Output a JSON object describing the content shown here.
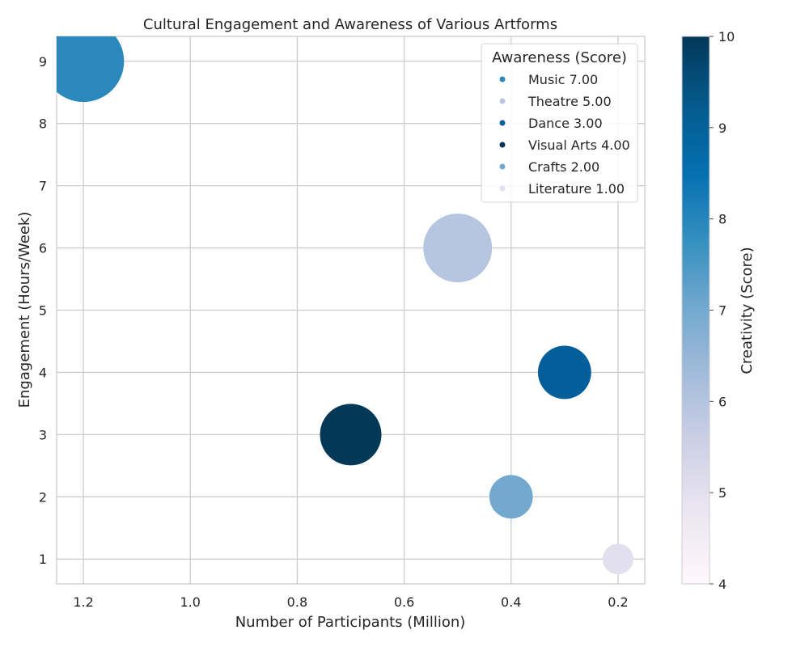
{
  "chart_data": {
    "type": "scatter",
    "title": "Cultural Engagement and Awareness of Various Artforms",
    "xlabel": "Number of Participants (Million)",
    "ylabel": "Engagement (Hours/Week)",
    "x_inverted": true,
    "xlim": [
      1.25,
      0.15
    ],
    "ylim": [
      0.6,
      9.4
    ],
    "xticks": [
      1.2,
      1.0,
      0.8,
      0.6,
      0.4,
      0.2
    ],
    "xtick_labels": [
      "1.2",
      "1.0",
      "0.8",
      "0.6",
      "0.4",
      "0.2"
    ],
    "yticks": [
      1,
      2,
      3,
      4,
      5,
      6,
      7,
      8,
      9
    ],
    "ytick_labels": [
      "1",
      "2",
      "3",
      "4",
      "5",
      "6",
      "7",
      "8",
      "9"
    ],
    "grid": true,
    "size_encodes": "Awareness (Score)",
    "color_encodes": "Creativity (Score)",
    "points": [
      {
        "label": "Music",
        "x": 1.2,
        "y": 9,
        "awareness": 7,
        "creativity": 8,
        "color": "#2a88bc"
      },
      {
        "label": "Theatre",
        "x": 0.5,
        "y": 6,
        "awareness": 5,
        "creativity": 6,
        "color": "#b6c6e1"
      },
      {
        "label": "Dance",
        "x": 0.3,
        "y": 4,
        "awareness": 3,
        "creativity": 9,
        "color": "#045e99"
      },
      {
        "label": "Visual Arts",
        "x": 0.7,
        "y": 3,
        "awareness": 4,
        "creativity": 10,
        "color": "#023858"
      },
      {
        "label": "Crafts",
        "x": 0.4,
        "y": 2,
        "awareness": 2,
        "creativity": 7,
        "color": "#73a9cf"
      },
      {
        "label": "Literature",
        "x": 0.2,
        "y": 1,
        "awareness": 1,
        "creativity": 5,
        "color": "#e2dfee"
      }
    ],
    "legend": {
      "title": "Awareness (Score)",
      "placement": "top-right",
      "entries": [
        "Music 7.00",
        "Theatre 5.00",
        "Dance 3.00",
        "Visual Arts 4.00",
        "Crafts 2.00",
        "Literature 1.00"
      ]
    },
    "colorbar": {
      "label": "Creativity (Score)",
      "range": [
        4,
        10
      ],
      "ticks": [
        "4",
        "5",
        "6",
        "7",
        "8",
        "9",
        "10"
      ],
      "stops": [
        "#fff7fb",
        "#ece7f2",
        "#d0d1e6",
        "#a6bddb",
        "#74a9cf",
        "#3690c0",
        "#0570b0",
        "#045a8d",
        "#023858"
      ]
    }
  }
}
